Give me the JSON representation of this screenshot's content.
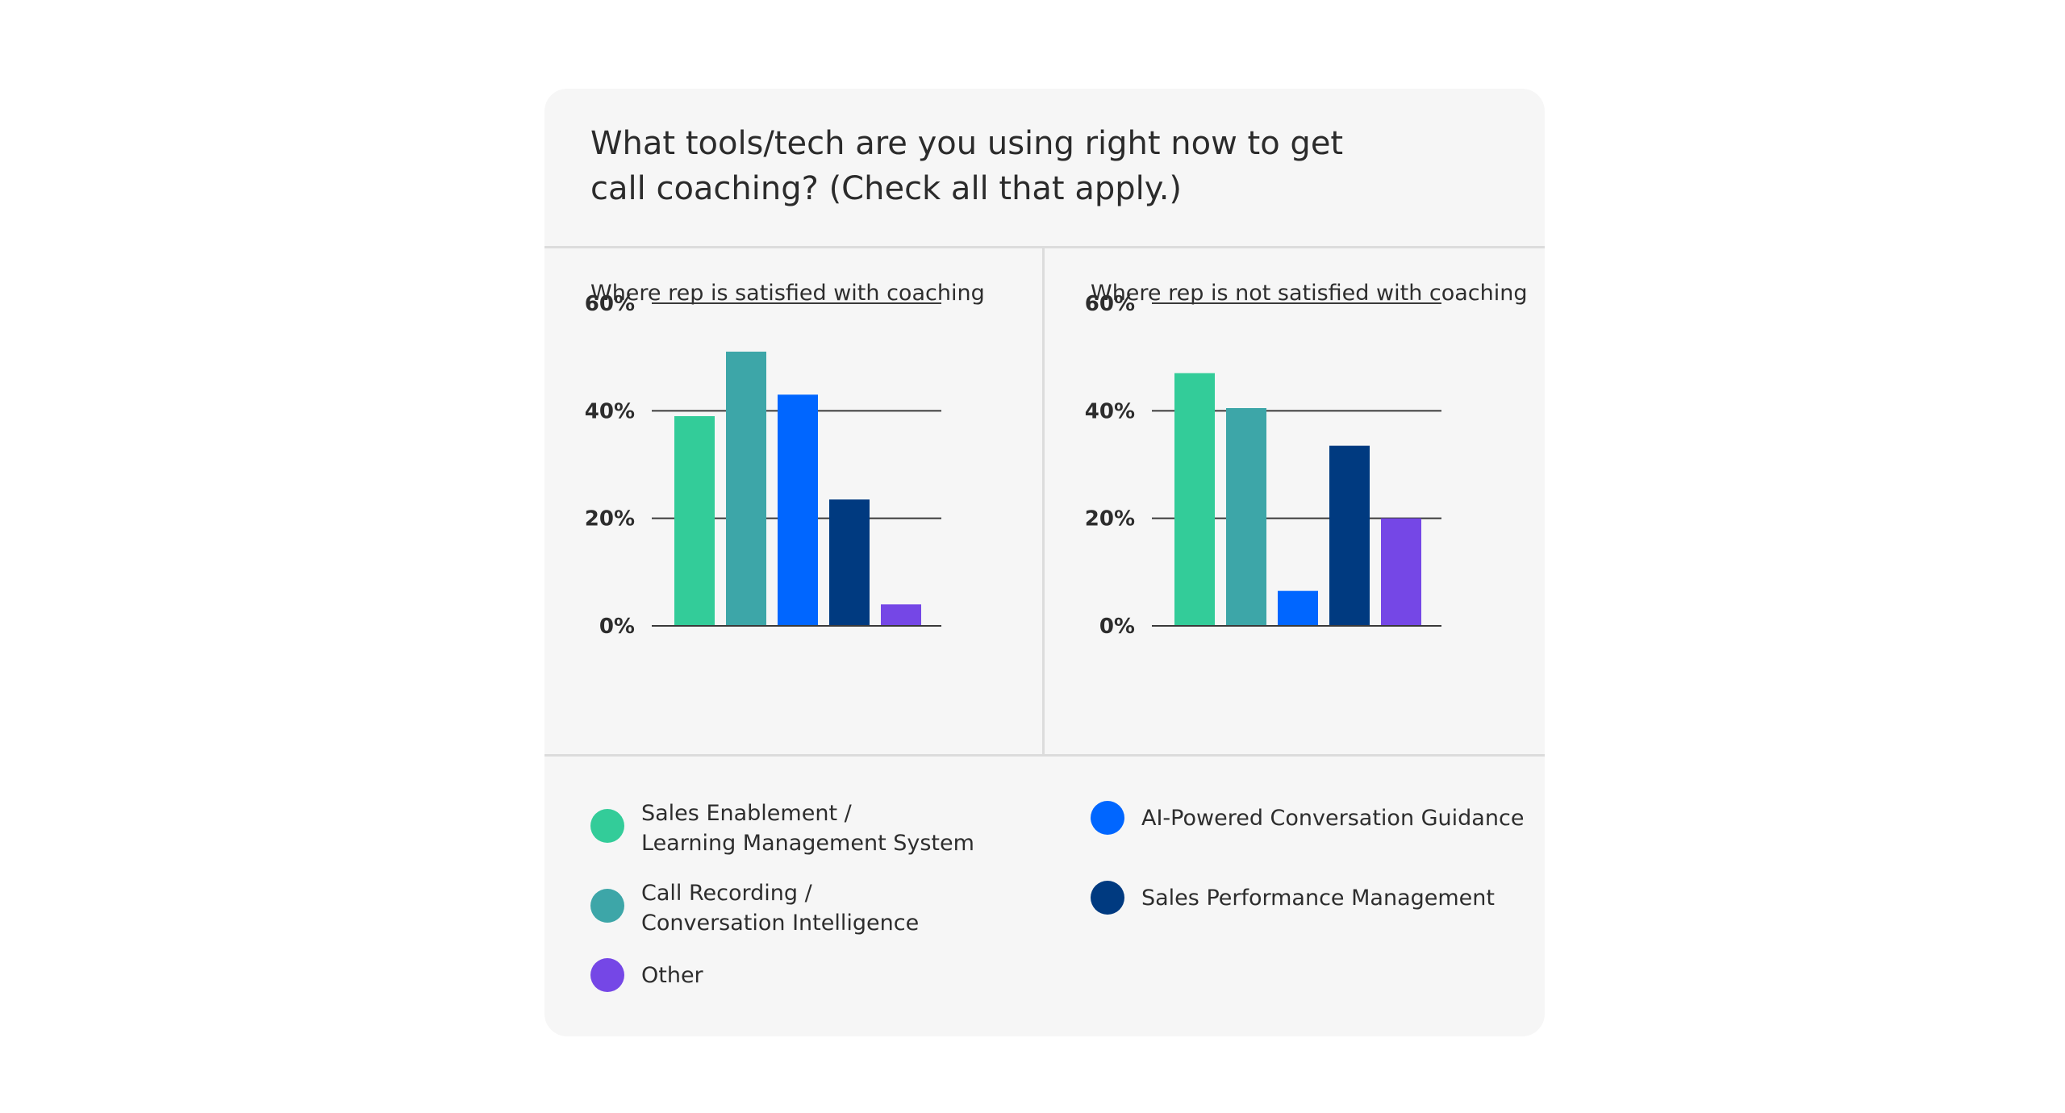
{
  "title": "What tools/tech are you using right now to get\ncall coaching? (Check all that apply.)",
  "chart_data": [
    {
      "type": "bar",
      "title": "Where rep is satisfied with coaching",
      "categories": [
        "Sales Enablement / Learning Management System",
        "Call Recording / Conversation Intelligence",
        "AI-Powered Conversation Guidance",
        "Sales Performance Management",
        "Other"
      ],
      "values": [
        39,
        51,
        43,
        23.5,
        4
      ],
      "ylim": [
        0,
        60
      ],
      "yticks": [
        "0%",
        "20%",
        "40%",
        "60%"
      ],
      "grid": true
    },
    {
      "type": "bar",
      "title": "Where rep is not satisfied with coaching",
      "categories": [
        "Sales Enablement / Learning Management System",
        "Call Recording / Conversation Intelligence",
        "AI-Powered Conversation Guidance",
        "Sales Performance Management",
        "Other"
      ],
      "values": [
        47,
        40.5,
        6.5,
        33.5,
        20
      ],
      "ylim": [
        0,
        60
      ],
      "yticks": [
        "0%",
        "20%",
        "40%",
        "60%"
      ],
      "grid": true
    }
  ],
  "colors": [
    "#33cc99",
    "#3da6a8",
    "#0066ff",
    "#003a80",
    "#7547e6"
  ],
  "legend": [
    {
      "label": "Sales Enablement /\nLearning Management System",
      "color": "#33cc99"
    },
    {
      "label": "Call Recording /\nConversation Intelligence",
      "color": "#3da6a8"
    },
    {
      "label": "Other",
      "color": "#7547e6"
    },
    {
      "label": "AI-Powered Conversation Guidance",
      "color": "#0066ff"
    },
    {
      "label": "Sales Performance Management",
      "color": "#003a80"
    }
  ]
}
